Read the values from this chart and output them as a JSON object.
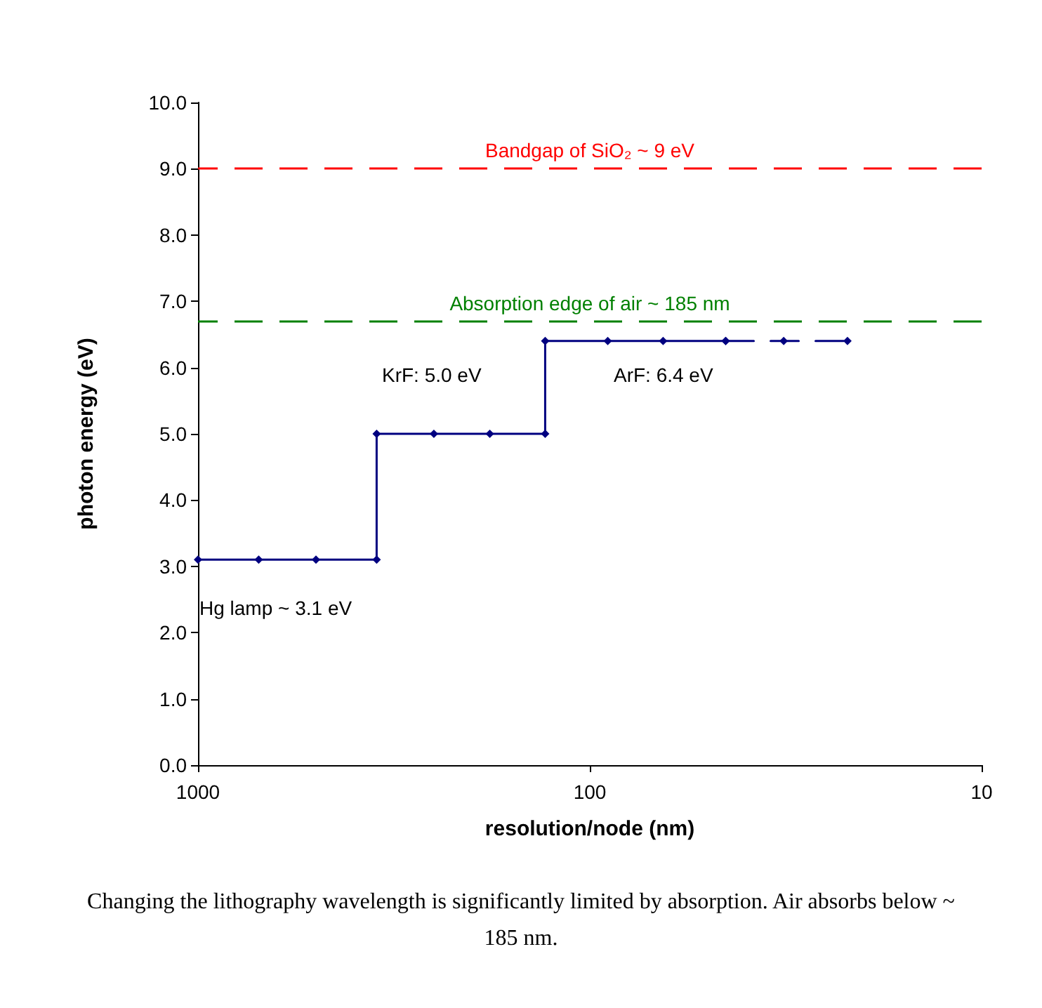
{
  "chart_data": {
    "type": "line",
    "xlabel": "resolution/node (nm)",
    "ylabel": "photon energy (eV)",
    "log": "x",
    "xlim": [
      1000,
      10
    ],
    "xticks": [
      1000,
      100,
      10
    ],
    "ylim": [
      0,
      10
    ],
    "yticks": [
      {
        "value": 0,
        "label": "0.0"
      },
      {
        "value": 1,
        "label": "1.0"
      },
      {
        "value": 2,
        "label": "2.0"
      },
      {
        "value": 3,
        "label": "3.0"
      },
      {
        "value": 4,
        "label": "4.0"
      },
      {
        "value": 5,
        "label": "5.0"
      },
      {
        "value": 6,
        "label": "6.0"
      },
      {
        "value": 7,
        "label": "7.0"
      },
      {
        "value": 8,
        "label": "8.0"
      },
      {
        "value": 9,
        "label": "9.0"
      },
      {
        "value": 10,
        "label": "10.0"
      }
    ],
    "grid": false,
    "marker": "diamond",
    "series": [
      {
        "color": "#000080",
        "line_style": "solid",
        "x": [
          1000,
          700,
          500,
          350,
          350,
          250,
          180,
          130,
          130,
          90,
          65,
          45
        ],
        "values": [
          3.1,
          3.1,
          3.1,
          3.1,
          5.0,
          5.0,
          5.0,
          5.0,
          6.4,
          6.4,
          6.4,
          6.4
        ]
      },
      {
        "color": "#000080",
        "line_style": "dashed",
        "x": [
          45,
          32,
          22
        ],
        "values": [
          6.4,
          6.4,
          6.4
        ]
      }
    ],
    "ref_lines": [
      {
        "axis": "y",
        "value": 9,
        "label": "Bandgap of SiO₂ ~ 9 eV",
        "color": "#ff0000",
        "line_style": "dashed"
      },
      {
        "axis": "y",
        "value": 6.7,
        "label": "Absorption edge of air ~ 185 nm",
        "color": "#008000",
        "line_style": "dashed"
      }
    ],
    "annotations": [
      "Hg lamp ~ 3.1 eV",
      "KrF: 5.0 eV",
      "ArF: 6.4 eV",
      "Changing the lithography wavelength is significantly limited by absorption. Air absorbs below ~ 185 nm."
    ]
  }
}
